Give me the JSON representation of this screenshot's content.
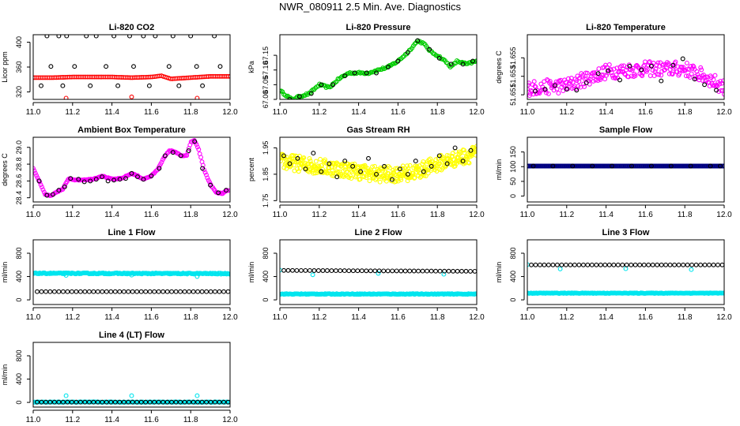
{
  "title": "NWR_080911  2.5 Min. Ave. Diagnostics",
  "colors": {
    "black": "#000000",
    "red": "#ff0000",
    "green": "#00cc00",
    "magenta": "#ff00ff",
    "yellow": "#ffff00",
    "navy": "#000080",
    "cyan": "#00e5ee"
  },
  "chart_data": [
    {
      "type": "scatter",
      "title": "Li-820 CO2",
      "ylabel": "Licor ppm",
      "xlim": [
        11.0,
        12.0
      ],
      "xticks": [
        "11.0",
        "11.2",
        "11.4",
        "11.6",
        "11.8",
        "12.0"
      ],
      "ylim": [
        308,
        412
      ],
      "yticks": [
        "320",
        "360",
        "400"
      ],
      "series": [
        {
          "color": "red",
          "dense": true,
          "density": 110,
          "x": [
            11.0,
            11.1,
            11.2,
            11.3,
            11.4,
            11.5,
            11.6,
            11.65,
            11.7,
            11.8,
            11.9,
            12.0
          ],
          "y": [
            343,
            343,
            344,
            344,
            344,
            343,
            344,
            346,
            341,
            343,
            345,
            345
          ]
        },
        {
          "color": "red",
          "x": [
            11.167,
            11.5,
            11.833
          ],
          "y": [
            310,
            312,
            310
          ]
        },
        {
          "color": "black",
          "x": [
            11.02,
            11.04,
            11.07,
            11.09,
            11.11,
            11.13,
            11.15,
            11.17,
            11.21,
            11.23,
            11.27,
            11.29,
            11.32,
            11.35,
            11.37,
            11.41,
            11.43,
            11.47,
            11.49,
            11.51,
            11.53,
            11.56,
            11.59,
            11.62,
            11.66,
            11.69,
            11.71,
            11.74,
            11.77,
            11.8,
            11.83,
            11.86,
            11.89,
            11.92,
            11.95,
            11.98
          ],
          "y": [
            305,
            330,
            410,
            361,
            305,
            410,
            330,
            410,
            361,
            305,
            410,
            330,
            410,
            305,
            361,
            410,
            330,
            305,
            410,
            361,
            305,
            410,
            330,
            410,
            305,
            361,
            410,
            330,
            305,
            410,
            361,
            330,
            305,
            410,
            361,
            305
          ]
        }
      ]
    },
    {
      "type": "scatter",
      "title": "Li-820 Pressure",
      "ylabel": "kPa",
      "xlim": [
        11.0,
        12.0
      ],
      "xticks": [
        "11.0",
        "11.2",
        "11.4",
        "11.6",
        "11.8",
        "12.0"
      ],
      "ylim": [
        67.0,
        67.22
      ],
      "yticks": [
        "67.00",
        "67.05",
        "67.10",
        "67.15"
      ],
      "series": [
        {
          "color": "green",
          "dense": true,
          "density": 150,
          "jitter": 0.006,
          "x": [
            11.0,
            11.02,
            11.06,
            11.1,
            11.15,
            11.2,
            11.25,
            11.3,
            11.35,
            11.4,
            11.45,
            11.5,
            11.55,
            11.6,
            11.65,
            11.7,
            11.73,
            11.77,
            11.8,
            11.84,
            11.87,
            11.9,
            11.95,
            12.0
          ],
          "y": [
            67.03,
            67.02,
            67.0,
            67.01,
            67.02,
            67.05,
            67.04,
            67.07,
            67.09,
            67.09,
            67.09,
            67.1,
            67.11,
            67.13,
            67.16,
            67.2,
            67.19,
            67.16,
            67.15,
            67.13,
            67.11,
            67.13,
            67.12,
            67.13
          ]
        },
        {
          "color": "black",
          "x": [
            11.05,
            11.1,
            11.16,
            11.21,
            11.27,
            11.33,
            11.38,
            11.44,
            11.49,
            11.55,
            11.6,
            11.65,
            11.7,
            11.76,
            11.81,
            11.87,
            11.93,
            11.98
          ],
          "y": [
            67.0,
            67.01,
            67.02,
            67.05,
            67.05,
            67.08,
            67.09,
            67.09,
            67.09,
            67.11,
            67.13,
            67.16,
            67.2,
            67.17,
            67.14,
            67.12,
            67.12,
            67.13
          ]
        }
      ]
    },
    {
      "type": "scatter",
      "title": "Li-820 Temperature",
      "ylabel": "degrees C",
      "xlim": [
        11.0,
        12.0
      ],
      "xticks": [
        "11.0",
        "11.2",
        "11.4",
        "11.6",
        "11.8",
        "12.0"
      ],
      "ylim": [
        51.6505,
        51.6575
      ],
      "yticks": [
        "51.651",
        "51.653",
        "51.655"
      ],
      "series": [
        {
          "color": "magenta",
          "dense": true,
          "density": 260,
          "jitter": 0.0016,
          "x": [
            11.0,
            11.2,
            11.4,
            11.6,
            11.8,
            11.9,
            12.0
          ],
          "y": [
            51.6517,
            51.652,
            51.6535,
            51.6538,
            51.6538,
            51.653,
            51.6518
          ]
        },
        {
          "color": "black",
          "x": [
            11.04,
            11.09,
            11.14,
            11.2,
            11.25,
            11.3,
            11.36,
            11.41,
            11.47,
            11.52,
            11.58,
            11.63,
            11.68,
            11.74,
            11.79,
            11.85,
            11.9,
            11.96
          ],
          "y": [
            51.6514,
            51.6516,
            51.652,
            51.6516,
            51.6515,
            51.6523,
            51.6533,
            51.6536,
            51.6526,
            51.6541,
            51.6537,
            51.6541,
            51.6525,
            51.6542,
            51.6549,
            51.6527,
            51.6521,
            51.6515
          ]
        }
      ]
    },
    {
      "type": "scatter",
      "title": "Ambient Box Temperature",
      "ylabel": "degrees C",
      "xlim": [
        11.0,
        12.0
      ],
      "xticks": [
        "11.0",
        "11.2",
        "11.4",
        "11.6",
        "11.8",
        "12.0"
      ],
      "ylim": [
        28.35,
        29.12
      ],
      "yticks": [
        "28.4",
        "28.6",
        "28.8",
        "29.0"
      ],
      "series": [
        {
          "color": "magenta",
          "dense": true,
          "density": 180,
          "jitter": 0.01,
          "x": [
            11.0,
            11.03,
            11.06,
            11.09,
            11.12,
            11.15,
            11.18,
            11.22,
            11.3,
            11.35,
            11.4,
            11.45,
            11.5,
            11.53,
            11.56,
            11.6,
            11.63,
            11.66,
            11.69,
            11.72,
            11.75,
            11.78,
            11.8,
            11.82,
            11.84,
            11.87,
            11.9,
            11.93,
            11.96,
            11.99
          ],
          "y": [
            28.75,
            28.6,
            28.44,
            28.42,
            28.47,
            28.5,
            28.63,
            28.61,
            28.62,
            28.66,
            28.62,
            28.63,
            28.69,
            28.66,
            28.62,
            28.66,
            28.73,
            28.86,
            28.96,
            28.95,
            28.9,
            28.9,
            29.06,
            29.08,
            28.98,
            28.72,
            28.56,
            28.46,
            28.45,
            28.49
          ]
        },
        {
          "color": "black",
          "x": [
            11.03,
            11.07,
            11.1,
            11.13,
            11.16,
            11.19,
            11.23,
            11.26,
            11.29,
            11.32,
            11.35,
            11.38,
            11.41,
            11.44,
            11.47,
            11.5,
            11.53,
            11.56,
            11.6,
            11.64,
            11.67,
            11.71,
            11.75,
            11.79,
            11.82,
            11.86,
            11.9,
            11.94,
            11.98
          ],
          "y": [
            28.6,
            28.43,
            28.44,
            28.49,
            28.53,
            28.63,
            28.62,
            28.59,
            28.6,
            28.62,
            28.65,
            28.6,
            28.61,
            28.62,
            28.63,
            28.69,
            28.65,
            28.62,
            28.66,
            28.75,
            28.9,
            28.94,
            28.9,
            28.96,
            29.07,
            28.75,
            28.55,
            28.46,
            28.49
          ]
        }
      ]
    },
    {
      "type": "scatter",
      "title": "Gas Stream RH",
      "ylabel": "percent",
      "xlim": [
        11.0,
        12.0
      ],
      "xticks": [
        "11.0",
        "11.2",
        "11.4",
        "11.6",
        "11.8",
        "12.0"
      ],
      "ylim": [
        1.745,
        1.99
      ],
      "yticks": [
        "1.75",
        "1.85",
        "1.95"
      ],
      "series": [
        {
          "color": "yellow",
          "dense": true,
          "density": 420,
          "jitter": 0.06,
          "x": [
            11.0,
            11.1,
            11.2,
            11.3,
            11.4,
            11.5,
            11.6,
            11.7,
            11.8,
            11.9,
            12.0
          ],
          "y": [
            1.9,
            1.89,
            1.88,
            1.87,
            1.86,
            1.85,
            1.85,
            1.86,
            1.89,
            1.91,
            1.93
          ]
        },
        {
          "color": "black",
          "x": [
            11.02,
            11.05,
            11.09,
            11.13,
            11.17,
            11.21,
            11.25,
            11.29,
            11.33,
            11.37,
            11.41,
            11.45,
            11.49,
            11.53,
            11.57,
            11.61,
            11.65,
            11.69,
            11.73,
            11.77,
            11.81,
            11.85,
            11.89,
            11.93,
            11.97
          ],
          "y": [
            1.92,
            1.89,
            1.91,
            1.87,
            1.93,
            1.86,
            1.89,
            1.84,
            1.9,
            1.88,
            1.86,
            1.91,
            1.85,
            1.88,
            1.83,
            1.87,
            1.85,
            1.9,
            1.86,
            1.88,
            1.92,
            1.89,
            1.95,
            1.9,
            1.94
          ]
        }
      ]
    },
    {
      "type": "scatter",
      "title": "Sample Flow",
      "ylabel": "ml/min",
      "xlim": [
        11.0,
        12.0
      ],
      "xticks": [
        "11.0",
        "11.2",
        "11.4",
        "11.6",
        "11.8",
        "12.0"
      ],
      "ylim": [
        -20,
        200
      ],
      "yticks": [
        "0",
        "50",
        "100",
        "150"
      ],
      "series": [
        {
          "color": "navy",
          "dense": true,
          "density": 200,
          "x": [
            11.0,
            12.0
          ],
          "y": [
            102,
            102
          ]
        },
        {
          "color": "black",
          "x": [
            11.03,
            11.13,
            11.23,
            11.33,
            11.43,
            11.53,
            11.63,
            11.73,
            11.83,
            11.93,
            11.98
          ],
          "y": [
            102,
            102,
            102,
            102,
            102,
            102,
            102,
            102,
            102,
            102,
            102
          ]
        }
      ]
    },
    {
      "type": "scatter",
      "title": "Line 1 Flow",
      "ylabel": "ml/min",
      "xlim": [
        11.0,
        12.0
      ],
      "xticks": [
        "11.0",
        "11.2",
        "11.4",
        "11.6",
        "11.8",
        "12.0"
      ],
      "ylim": [
        -80,
        1030
      ],
      "yticks": [
        "0",
        "400",
        "800"
      ],
      "series": [
        {
          "color": "cyan",
          "dense": true,
          "density": 240,
          "jitter": 18,
          "x": [
            11.0,
            12.0
          ],
          "y": [
            455,
            450
          ]
        },
        {
          "color": "cyan",
          "x": [
            11.167,
            11.5,
            11.833
          ],
          "y": [
            420,
            425,
            400
          ]
        },
        {
          "color": "black",
          "dense": true,
          "density": 45,
          "x": [
            11.02,
            11.99
          ],
          "y": [
            140,
            140
          ]
        }
      ]
    },
    {
      "type": "scatter",
      "title": "Line 2 Flow",
      "ylabel": "ml/min",
      "xlim": [
        11.0,
        12.0
      ],
      "xticks": [
        "11.0",
        "11.2",
        "11.4",
        "11.6",
        "11.8",
        "12.0"
      ],
      "ylim": [
        -80,
        1030
      ],
      "yticks": [
        "0",
        "400",
        "800"
      ],
      "series": [
        {
          "color": "cyan",
          "dense": true,
          "density": 240,
          "jitter": 14,
          "x": [
            11.0,
            12.0
          ],
          "y": [
            100,
            100
          ]
        },
        {
          "color": "cyan",
          "x": [
            11.0,
            11.167,
            11.5,
            11.833
          ],
          "y": [
            510,
            430,
            455,
            440
          ]
        },
        {
          "color": "black",
          "dense": true,
          "density": 45,
          "x": [
            11.02,
            11.99
          ],
          "y": [
            505,
            490
          ]
        }
      ]
    },
    {
      "type": "scatter",
      "title": "Line 3 Flow",
      "ylabel": "ml/min",
      "xlim": [
        11.0,
        12.0
      ],
      "xticks": [
        "11.0",
        "11.2",
        "11.4",
        "11.6",
        "11.8",
        "12.0"
      ],
      "ylim": [
        -80,
        1030
      ],
      "yticks": [
        "0",
        "400",
        "800"
      ],
      "series": [
        {
          "color": "cyan",
          "dense": true,
          "density": 240,
          "jitter": 10,
          "x": [
            11.0,
            12.0
          ],
          "y": [
            115,
            115
          ]
        },
        {
          "color": "cyan",
          "x": [
            11.0,
            11.167,
            11.5,
            11.833
          ],
          "y": [
            605,
            530,
            535,
            520
          ]
        },
        {
          "color": "black",
          "dense": true,
          "density": 45,
          "x": [
            11.02,
            11.99
          ],
          "y": [
            600,
            600
          ]
        }
      ]
    },
    {
      "type": "scatter",
      "title": "Line 4 (LT) Flow",
      "ylabel": "ml/min",
      "xlim": [
        11.0,
        12.0
      ],
      "xticks": [
        "11.0",
        "11.2",
        "11.4",
        "11.6",
        "11.8",
        "12.0"
      ],
      "ylim": [
        -80,
        1030
      ],
      "yticks": [
        "0",
        "400",
        "800"
      ],
      "series": [
        {
          "color": "cyan",
          "dense": true,
          "density": 240,
          "jitter": 6,
          "x": [
            11.0,
            12.0
          ],
          "y": [
            5,
            5
          ]
        },
        {
          "color": "cyan",
          "x": [
            11.167,
            11.5,
            11.833
          ],
          "y": [
            115,
            115,
            115
          ]
        },
        {
          "color": "black",
          "dense": true,
          "density": 45,
          "x": [
            11.02,
            11.99
          ],
          "y": [
            5,
            5
          ]
        }
      ]
    }
  ]
}
